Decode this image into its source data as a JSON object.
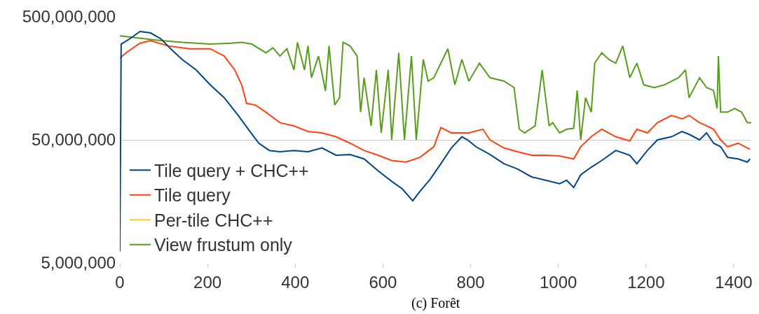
{
  "chart_data": {
    "type": "line",
    "log": "y",
    "grid": "y",
    "legend": "bottom left",
    "line_style": "solid",
    "marker": "none",
    "xlim": [
      0,
      1440
    ],
    "xticks": [
      0,
      200,
      400,
      600,
      800,
      1000,
      1200,
      1400
    ],
    "ylim": [
      5000000,
      500000000
    ],
    "yticks": [
      {
        "value": 5000000,
        "label": "5,000,000"
      },
      {
        "value": 50000000,
        "label": "50,000,000"
      },
      {
        "value": 500000000,
        "label": "500,000,000"
      }
    ],
    "annotations": [
      "(c) Forêt"
    ],
    "series": [
      {
        "name": "Tile query + CHC++",
        "color": "#004586",
        "x": [
          0,
          3,
          22,
          46,
          70,
          94,
          118,
          142,
          174,
          206,
          238,
          270,
          293,
          317,
          341,
          365,
          397,
          429,
          461,
          493,
          525,
          557,
          589,
          620,
          644,
          668,
          684,
          708,
          732,
          756,
          780,
          793,
          812,
          844,
          876,
          907,
          939,
          971,
          1003,
          1019,
          1035,
          1051,
          1075,
          1099,
          1131,
          1163,
          1179,
          1203,
          1226,
          1258,
          1282,
          1298,
          1322,
          1338,
          1354,
          1370,
          1386,
          1410,
          1431,
          1437
        ],
        "values": [
          6200000.0,
          300000000.0,
          330000000.0,
          380000000.0,
          370000000.0,
          330000000.0,
          270000000.0,
          225000000.0,
          185000000.0,
          140000000.0,
          110000000.0,
          79000000.0,
          61000000.0,
          47000000.0,
          41000000.0,
          40000000.0,
          41000000.0,
          40000000.0,
          43000000.0,
          37500000.0,
          38000000.0,
          35000000.0,
          28000000.0,
          23000000.0,
          20000000.0,
          16000000.0,
          19000000.0,
          24000000.0,
          32000000.0,
          43000000.0,
          53000000.0,
          50000000.0,
          44000000.0,
          38000000.0,
          32000000.0,
          29000000.0,
          25000000.0,
          23500000.0,
          22000000.0,
          23500000.0,
          20500000.0,
          26000000.0,
          30000000.0,
          34000000.0,
          41000000.0,
          37500000.0,
          32000000.0,
          41000000.0,
          50000000.0,
          53000000.0,
          58500000.0,
          55500000.0,
          50000000.0,
          57000000.0,
          47000000.0,
          44000000.0,
          36000000.0,
          35000000.0,
          33000000.0,
          35000000.0
        ]
      },
      {
        "name": "Tile query",
        "color": "#ff420e",
        "x": [
          0,
          14,
          46,
          70,
          110,
          158,
          206,
          238,
          262,
          278,
          289,
          309,
          333,
          365,
          397,
          429,
          461,
          493,
          525,
          557,
          589,
          620,
          652,
          684,
          716,
          732,
          756,
          780,
          796,
          828,
          844,
          876,
          907,
          939,
          971,
          1003,
          1035,
          1051,
          1075,
          1099,
          1131,
          1163,
          1179,
          1203,
          1226,
          1258,
          1282,
          1298,
          1322,
          1338,
          1354,
          1370,
          1386,
          1410,
          1431,
          1437
        ],
        "values": [
          230000000.0,
          255000000.0,
          305000000.0,
          320000000.0,
          290000000.0,
          275000000.0,
          275000000.0,
          240000000.0,
          185000000.0,
          140000000.0,
          99000000.0,
          96000000.0,
          84000000.0,
          69000000.0,
          65000000.0,
          58500000.0,
          57000000.0,
          53000000.0,
          47000000.0,
          41000000.0,
          37500000.0,
          34000000.0,
          33000000.0,
          36000000.0,
          44000000.0,
          63000000.0,
          57000000.0,
          57000000.0,
          57000000.0,
          61000000.0,
          50000000.0,
          43000000.0,
          40000000.0,
          37500000.0,
          37500000.0,
          37000000.0,
          35000000.0,
          44000000.0,
          53000000.0,
          61000000.0,
          53000000.0,
          49000000.0,
          61000000.0,
          57000000.0,
          69000000.0,
          79000000.0,
          74000000.0,
          79000000.0,
          69000000.0,
          65000000.0,
          61000000.0,
          50000000.0,
          44000000.0,
          47000000.0,
          43000000.0,
          42000000.0
        ]
      },
      {
        "name": "Per-tile CHC++",
        "color": "#ffd320",
        "values": [
          null
        ]
      },
      {
        "name": "View frustum only",
        "color": "#579d1c",
        "x": [
          0,
          14,
          78,
          142,
          206,
          254,
          278,
          301,
          333,
          349,
          365,
          381,
          397,
          405,
          421,
          429,
          437,
          453,
          469,
          477,
          490,
          501,
          509,
          525,
          541,
          549,
          557,
          573,
          585,
          596,
          612,
          620,
          636,
          649,
          665,
          676,
          692,
          703,
          716,
          748,
          764,
          780,
          796,
          820,
          844,
          876,
          899,
          911,
          923,
          947,
          963,
          979,
          987,
          1003,
          1019,
          1035,
          1043,
          1051,
          1062,
          1075,
          1083,
          1099,
          1115,
          1131,
          1147,
          1163,
          1179,
          1195,
          1219,
          1242,
          1258,
          1274,
          1290,
          1298,
          1322,
          1338,
          1354,
          1362,
          1365,
          1370,
          1386,
          1402,
          1418,
          1431,
          1440
        ],
        "values": [
          350000000.0,
          345000000.0,
          325000000.0,
          310000000.0,
          300000000.0,
          305000000.0,
          310000000.0,
          300000000.0,
          255000000.0,
          280000000.0,
          240000000.0,
          275000000.0,
          185000000.0,
          310000000.0,
          185000000.0,
          290000000.0,
          160000000.0,
          240000000.0,
          125000000.0,
          290000000.0,
          96000000.0,
          110000000.0,
          310000000.0,
          290000000.0,
          240000000.0,
          84000000.0,
          160000000.0,
          65000000.0,
          185000000.0,
          57000000.0,
          185000000.0,
          50000000.0,
          255000000.0,
          50000000.0,
          240000000.0,
          50000000.0,
          225000000.0,
          150000000.0,
          160000000.0,
          275000000.0,
          140000000.0,
          225000000.0,
          150000000.0,
          210000000.0,
          160000000.0,
          150000000.0,
          133000000.0,
          61000000.0,
          57000000.0,
          65000000.0,
          185000000.0,
          65000000.0,
          69000000.0,
          57000000.0,
          61000000.0,
          62000000.0,
          126000000.0,
          50000000.0,
          110000000.0,
          84000000.0,
          210000000.0,
          255000000.0,
          225000000.0,
          210000000.0,
          290000000.0,
          160000000.0,
          210000000.0,
          140000000.0,
          133000000.0,
          140000000.0,
          150000000.0,
          160000000.0,
          185000000.0,
          110000000.0,
          160000000.0,
          133000000.0,
          126000000.0,
          90000000.0,
          240000000.0,
          84000000.0,
          84000000.0,
          90000000.0,
          84000000.0,
          69000000.0,
          69000000.0
        ]
      }
    ]
  }
}
